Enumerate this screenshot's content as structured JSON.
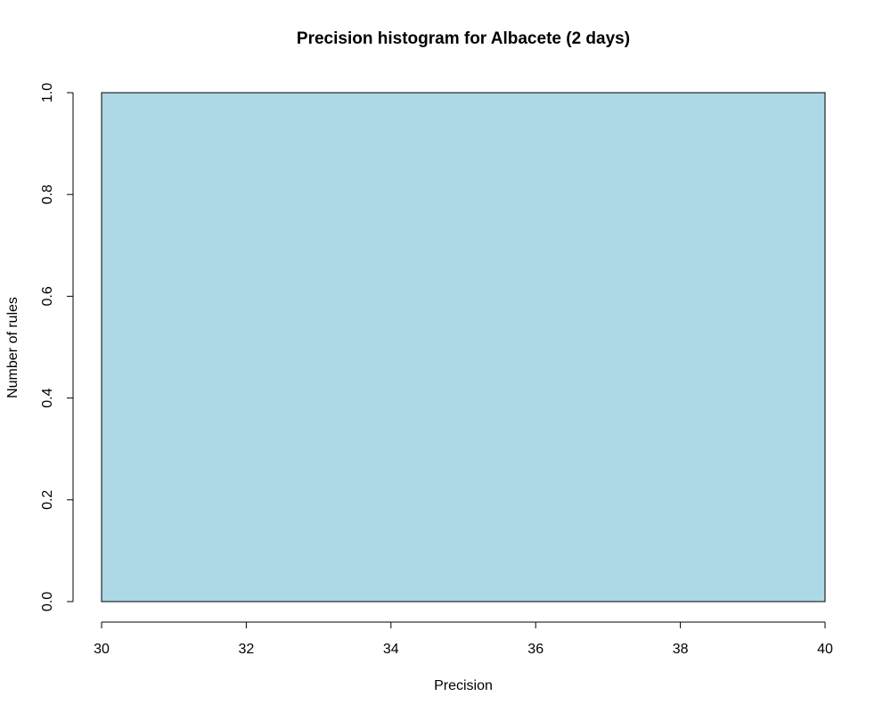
{
  "chart_data": {
    "type": "bar",
    "title": "Precision histogram for Albacete (2 days)",
    "xlabel": "Precision",
    "ylabel": "Number of rules",
    "bins": [
      {
        "x0": 30,
        "x1": 40,
        "count": 1
      }
    ],
    "xlim": [
      30,
      40
    ],
    "ylim": [
      0,
      1
    ],
    "x_ticks": [
      30,
      32,
      34,
      36,
      38,
      40
    ],
    "y_ticks": [
      0.0,
      0.2,
      0.4,
      0.6,
      0.8,
      1.0
    ],
    "x_tick_labels": [
      "30",
      "32",
      "34",
      "36",
      "38",
      "40"
    ],
    "y_tick_labels": [
      "0.0",
      "0.2",
      "0.4",
      "0.6",
      "0.8",
      "1.0"
    ],
    "bar_color": "#add8e6",
    "grid": false,
    "legend": "none"
  }
}
